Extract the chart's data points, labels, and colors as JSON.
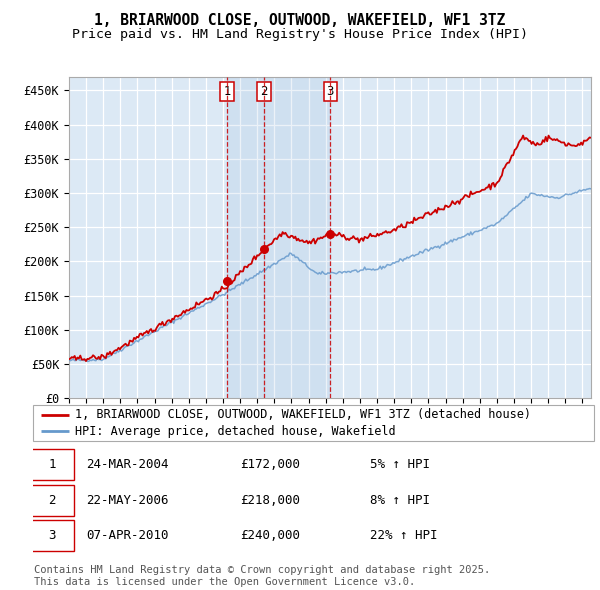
{
  "title_line1": "1, BRIARWOOD CLOSE, OUTWOOD, WAKEFIELD, WF1 3TZ",
  "title_line2": "Price paid vs. HM Land Registry's House Price Index (HPI)",
  "ylabel_ticks": [
    "£0",
    "£50K",
    "£100K",
    "£150K",
    "£200K",
    "£250K",
    "£300K",
    "£350K",
    "£400K",
    "£450K"
  ],
  "ytick_values": [
    0,
    50000,
    100000,
    150000,
    200000,
    250000,
    300000,
    350000,
    400000,
    450000
  ],
  "xlim_start": 1995.0,
  "xlim_end": 2025.5,
  "ylim_min": 0,
  "ylim_max": 470000,
  "background_color": "#dce9f5",
  "grid_color": "#ffffff",
  "hpi_line_color": "#6699cc",
  "price_line_color": "#cc0000",
  "sale_marker_color": "#cc0000",
  "vline_color": "#cc0000",
  "sale_points": [
    {
      "year": 2004.23,
      "price": 172000,
      "label": "1"
    },
    {
      "year": 2006.39,
      "price": 218000,
      "label": "2"
    },
    {
      "year": 2010.27,
      "price": 240000,
      "label": "3"
    }
  ],
  "legend_house_label": "1, BRIARWOOD CLOSE, OUTWOOD, WAKEFIELD, WF1 3TZ (detached house)",
  "legend_hpi_label": "HPI: Average price, detached house, Wakefield",
  "table_data": [
    {
      "num": "1",
      "date": "24-MAR-2004",
      "price": "£172,000",
      "pct": "5% ↑ HPI"
    },
    {
      "num": "2",
      "date": "22-MAY-2006",
      "price": "£218,000",
      "pct": "8% ↑ HPI"
    },
    {
      "num": "3",
      "date": "07-APR-2010",
      "price": "£240,000",
      "pct": "22% ↑ HPI"
    }
  ],
  "footer_text": "Contains HM Land Registry data © Crown copyright and database right 2025.\nThis data is licensed under the Open Government Licence v3.0.",
  "title_fontsize": 10.5,
  "subtitle_fontsize": 9.5,
  "tick_fontsize": 8.5,
  "legend_fontsize": 8.5,
  "table_fontsize": 9,
  "footer_fontsize": 7.5
}
